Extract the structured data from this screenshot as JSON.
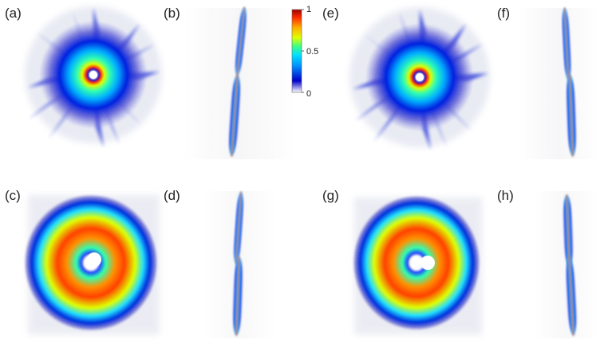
{
  "panels": [
    {
      "id": "a",
      "label": "(a)"
    },
    {
      "id": "b",
      "label": "(b)"
    },
    {
      "id": "c",
      "label": "(c)"
    },
    {
      "id": "d",
      "label": "(d)"
    },
    {
      "id": "e",
      "label": "(e)"
    },
    {
      "id": "f",
      "label": "(f)"
    },
    {
      "id": "g",
      "label": "(g)"
    },
    {
      "id": "h",
      "label": "(h)"
    }
  ],
  "colorbar": {
    "ticks": [
      "1",
      "0.5",
      "0"
    ],
    "colormap": [
      "#ffffff",
      "#0000c8",
      "#0090ff",
      "#00e0ff",
      "#40ff80",
      "#e0ff00",
      "#ffb000",
      "#ff3000",
      "#a00000"
    ]
  }
}
